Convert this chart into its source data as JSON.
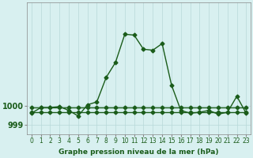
{
  "x": [
    0,
    1,
    2,
    3,
    4,
    5,
    6,
    7,
    8,
    9,
    10,
    11,
    12,
    13,
    14,
    15,
    16,
    17,
    18,
    19,
    20,
    21,
    22,
    23
  ],
  "y_main": [
    999.6,
    999.9,
    999.9,
    999.95,
    999.75,
    999.45,
    1000.05,
    1000.2,
    1001.5,
    1002.3,
    1003.8,
    1003.75,
    1003.0,
    1002.95,
    1003.3,
    1001.1,
    999.75,
    999.6,
    999.65,
    999.75,
    999.55,
    999.65,
    1000.5,
    999.6
  ],
  "y_flat1": [
    999.9,
    999.9,
    999.9,
    999.9,
    999.9,
    999.9,
    999.9,
    999.9,
    999.9,
    999.9,
    999.9,
    999.9,
    999.9,
    999.9,
    999.9,
    999.9,
    999.9,
    999.9,
    999.9,
    999.9,
    999.9,
    999.9,
    999.9,
    999.9
  ],
  "y_flat2": [
    999.65,
    999.65,
    999.65,
    999.65,
    999.65,
    999.65,
    999.65,
    999.65,
    999.65,
    999.65,
    999.65,
    999.65,
    999.65,
    999.65,
    999.65,
    999.65,
    999.65,
    999.65,
    999.65,
    999.65,
    999.65,
    999.65,
    999.65,
    999.65
  ],
  "line_color": "#1a5c1a",
  "bg_color": "#d8f0f0",
  "grid_color": "#b8d8d8",
  "ylabel_left": [
    "999",
    "1000"
  ],
  "ylim": [
    998.5,
    1005.5
  ],
  "yticks": [
    999.0,
    1000.0
  ],
  "xlabel_label": "Graphe pression niveau de la mer (hPa)",
  "marker": "D",
  "markersize": 2.5,
  "linewidth": 1.0,
  "fontsize_xlabel": 6.5,
  "fontsize_ytick": 7,
  "fontsize_xtick": 5.5
}
